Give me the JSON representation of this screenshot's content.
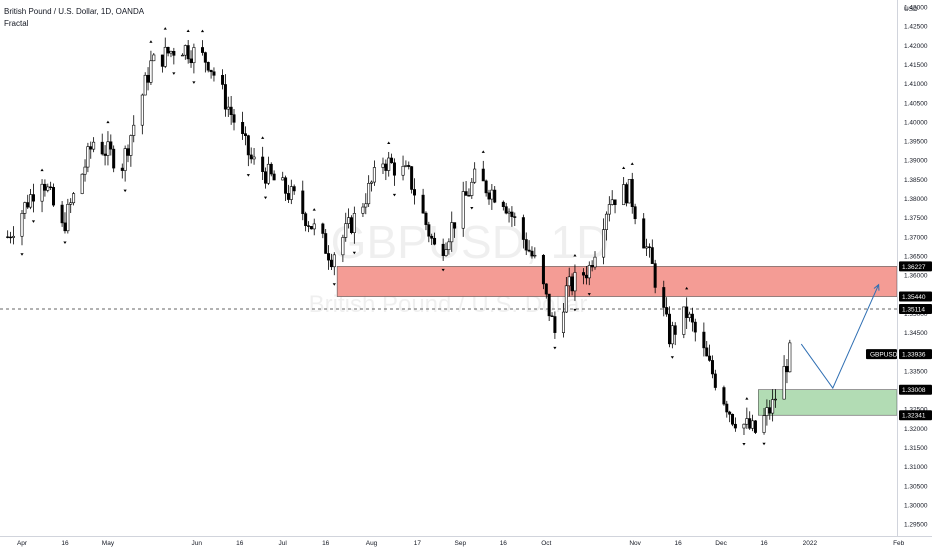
{
  "legend": {
    "symbol_line": "British Pound / U.S. Dollar, 1D, OANDA",
    "indicator": "Fractal"
  },
  "watermark": {
    "ticker": "GBPUSD, 1D",
    "name": "British Pound / U.S. Dollar"
  },
  "colors": {
    "candle": "#000000",
    "resistance_zone": "#f28b82",
    "support_zone": "#a5d6a7",
    "projection": "#2f6fb3",
    "tag_bg": "#000000",
    "tag_text": "#ffffff"
  },
  "chart_data": {
    "type": "candlestick",
    "symbol": "GBPUSD",
    "timeframe": "1D",
    "currency": "USD",
    "ylim": [
      1.2925,
      1.43
    ],
    "y_ticks": [
      "1.43000",
      "1.42500",
      "1.42000",
      "1.41500",
      "1.41000",
      "1.40500",
      "1.40000",
      "1.39500",
      "1.39000",
      "1.38500",
      "1.38000",
      "1.37500",
      "1.37000",
      "1.36500",
      "1.36000",
      "1.35500",
      "1.35000",
      "1.34500",
      "1.34000",
      "1.33500",
      "1.33000",
      "1.32500",
      "1.32000",
      "1.31500",
      "1.31000",
      "1.30500",
      "1.30000",
      "1.29500"
    ],
    "x_ticks": [
      {
        "label": "Apr",
        "day": 0
      },
      {
        "label": "16",
        "day": 15
      },
      {
        "label": "May",
        "day": 30
      },
      {
        "label": "Jun",
        "day": 61
      },
      {
        "label": "16",
        "day": 76
      },
      {
        "label": "Jul",
        "day": 91
      },
      {
        "label": "16",
        "day": 106
      },
      {
        "label": "Aug",
        "day": 122
      },
      {
        "label": "17",
        "day": 138
      },
      {
        "label": "Sep",
        "day": 153
      },
      {
        "label": "16",
        "day": 168
      },
      {
        "label": "Oct",
        "day": 183
      },
      {
        "label": "Nov",
        "day": 214
      },
      {
        "label": "16",
        "day": 229
      },
      {
        "label": "Dec",
        "day": 244
      },
      {
        "label": "16",
        "day": 259
      },
      {
        "label": "2022",
        "day": 275
      },
      {
        "label": "Feb",
        "day": 306
      }
    ],
    "key_path": [
      {
        "day": -5,
        "price": 1.37
      },
      {
        "day": 7,
        "price": 1.386
      },
      {
        "day": 14,
        "price": 1.372
      },
      {
        "day": 25,
        "price": 1.395
      },
      {
        "day": 35,
        "price": 1.389
      },
      {
        "day": 45,
        "price": 1.415
      },
      {
        "day": 55,
        "price": 1.42
      },
      {
        "day": 65,
        "price": 1.416
      },
      {
        "day": 80,
        "price": 1.39
      },
      {
        "day": 95,
        "price": 1.38
      },
      {
        "day": 108,
        "price": 1.365
      },
      {
        "day": 117,
        "price": 1.376
      },
      {
        "day": 126,
        "price": 1.39
      },
      {
        "day": 135,
        "price": 1.386
      },
      {
        "day": 145,
        "price": 1.365
      },
      {
        "day": 158,
        "price": 1.385
      },
      {
        "day": 168,
        "price": 1.38
      },
      {
        "day": 180,
        "price": 1.362
      },
      {
        "day": 186,
        "price": 1.345
      },
      {
        "day": 190,
        "price": 1.356
      },
      {
        "day": 198,
        "price": 1.362
      },
      {
        "day": 205,
        "price": 1.38
      },
      {
        "day": 212,
        "price": 1.382
      },
      {
        "day": 220,
        "price": 1.362
      },
      {
        "day": 226,
        "price": 1.344
      },
      {
        "day": 232,
        "price": 1.35
      },
      {
        "day": 240,
        "price": 1.336
      },
      {
        "day": 248,
        "price": 1.323
      },
      {
        "day": 256,
        "price": 1.319
      },
      {
        "day": 262,
        "price": 1.326
      },
      {
        "day": 268,
        "price": 1.3394
      }
    ],
    "zones": [
      {
        "name": "resistance",
        "top": 1.36227,
        "bottom": 1.3544,
        "from_day": 110,
        "to_day": 310
      },
      {
        "name": "support",
        "top": 1.33008,
        "bottom": 1.32341,
        "from_day": 257,
        "to_day": 310
      }
    ],
    "hline": {
      "price": 1.35114,
      "style": "dashed"
    },
    "projection_path": [
      {
        "day": 272,
        "price": 1.342
      },
      {
        "day": 283,
        "price": 1.3305
      },
      {
        "day": 299,
        "price": 1.3575
      }
    ],
    "price_tags": [
      {
        "label": "1.36227",
        "price": 1.36227
      },
      {
        "label": "1.35440",
        "price": 1.3544
      },
      {
        "label": "1.35114",
        "price": 1.35114
      },
      {
        "label": "1.33936",
        "price": 1.33936,
        "name": "GBPUSD"
      },
      {
        "label": "1.33008",
        "price": 1.33008
      },
      {
        "label": "1.32341",
        "price": 1.32341
      }
    ]
  }
}
